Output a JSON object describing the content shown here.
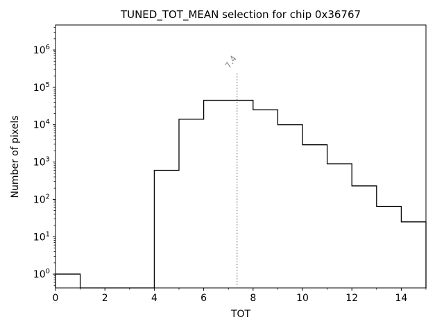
{
  "chart_data": {
    "type": "histogram-step",
    "title": "TUNED_TOT_MEAN selection for chip 0x36767",
    "xlabel": "TOT",
    "ylabel": "Number of pixels",
    "xlim": [
      0,
      15
    ],
    "ylog": true,
    "ylim_exp": [
      -0.37,
      6.67
    ],
    "bin_edges": [
      0,
      1,
      2,
      3,
      4,
      5,
      6,
      7,
      8,
      9,
      10,
      11,
      12,
      13,
      14,
      15
    ],
    "counts": [
      1,
      0,
      0,
      0,
      600,
      14000,
      45000,
      45000,
      25000,
      10000,
      2900,
      900,
      230,
      65,
      25
    ],
    "x_ticks": [
      0,
      2,
      4,
      6,
      8,
      10,
      12,
      14
    ],
    "y_tick_exponents": [
      0,
      1,
      2,
      3,
      4,
      5,
      6
    ],
    "line_color": "#000000",
    "marker": {
      "x": 7.35,
      "label": "7.4",
      "top_value": 250000,
      "color": "#888888",
      "style": "dotted"
    },
    "grid": false
  }
}
